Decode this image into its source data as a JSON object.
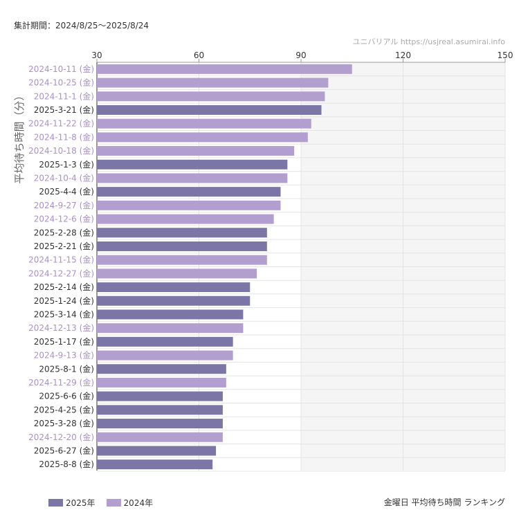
{
  "header": {
    "period": "集計期間：2024/8/25〜2025/8/24",
    "source": "ユニバリアル  https://usjreal.asumirai.info"
  },
  "caption": "金曜日 平均待ち時間 ランキング",
  "colors": {
    "s2025": "#7b76a5",
    "s2024": "#b39fcf",
    "label2025": "#333333",
    "label2024": "#a991c9",
    "grid": "#e3e3e3",
    "shade": "#f5f5f5"
  },
  "chart_data": {
    "type": "bar",
    "orientation": "horizontal",
    "title": "",
    "xlabel": "",
    "ylabel": "平均待ち時間（分）",
    "xlim": [
      30,
      150
    ],
    "xticks": [
      "30",
      "60",
      "90",
      "120",
      "150"
    ],
    "shaded_from": 90,
    "grid": true,
    "legend_position": "bottom-left",
    "series": [
      {
        "name": "2025年",
        "key": "s2025"
      },
      {
        "name": "2024年",
        "key": "s2024"
      }
    ],
    "categories": [
      "2024-10-11 (金)",
      "2024-10-25 (金)",
      "2024-11-1 (金)",
      "2025-3-21 (金)",
      "2024-11-22 (金)",
      "2024-11-8 (金)",
      "2024-10-18 (金)",
      "2025-1-3 (金)",
      "2024-10-4 (金)",
      "2025-4-4 (金)",
      "2024-9-27 (金)",
      "2024-12-6 (金)",
      "2025-2-28 (金)",
      "2025-2-21 (金)",
      "2024-11-15 (金)",
      "2024-12-27 (金)",
      "2025-2-14 (金)",
      "2025-1-24 (金)",
      "2025-3-14 (金)",
      "2024-12-13 (金)",
      "2025-1-17 (金)",
      "2024-9-13 (金)",
      "2025-8-1 (金)",
      "2024-11-29 (金)",
      "2025-6-6 (金)",
      "2025-4-25 (金)",
      "2025-3-28 (金)",
      "2024-12-20 (金)",
      "2025-6-27 (金)",
      "2025-8-8 (金)"
    ],
    "values": [
      105,
      98,
      97,
      96,
      93,
      92,
      88,
      86,
      86,
      84,
      84,
      82,
      80,
      80,
      80,
      77,
      75,
      75,
      73,
      73,
      70,
      70,
      68,
      68,
      67,
      67,
      67,
      67,
      65,
      64
    ],
    "year": [
      2024,
      2024,
      2024,
      2025,
      2024,
      2024,
      2024,
      2025,
      2024,
      2025,
      2024,
      2024,
      2025,
      2025,
      2024,
      2024,
      2025,
      2025,
      2025,
      2024,
      2025,
      2024,
      2025,
      2024,
      2025,
      2025,
      2025,
      2024,
      2025,
      2025
    ]
  }
}
